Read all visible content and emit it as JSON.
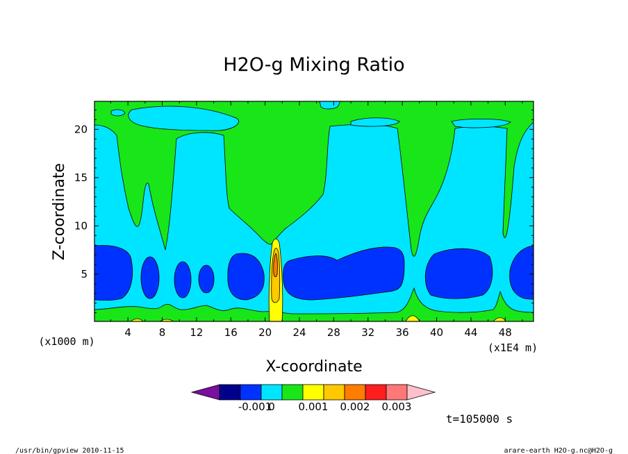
{
  "chart_data": {
    "type": "contour",
    "title": "H2O-g Mixing Ratio",
    "xlabel": "X-coordinate",
    "ylabel": "Z-coordinate",
    "x_unit_label": "(x1E4 m)",
    "y_unit_label": "(x1000 m)",
    "xlim": [
      0.1,
      51.3
    ],
    "ylim": [
      0.1,
      22.9
    ],
    "x_ticks": [
      "4",
      "8",
      "12",
      "16",
      "20",
      "24",
      "28",
      "32",
      "36",
      "40",
      "44",
      "48"
    ],
    "y_ticks": [
      "5",
      "10",
      "15",
      "20"
    ],
    "colorbar": {
      "colors": [
        "#7a0fa0",
        "#00008c",
        "#0032ff",
        "#00e5ff",
        "#19e619",
        "#ffff00",
        "#ffc800",
        "#ff7d00",
        "#ff1e1e",
        "#ff7878",
        "#ffc0cb"
      ],
      "tick_labels": [
        "-0.001",
        "0",
        "0.001",
        "0.002",
        "0.003"
      ],
      "levels": [
        -0.001,
        0,
        0.001,
        0.002,
        0.003
      ]
    },
    "regions": {
      "positive_band_top_z": 22.9,
      "cyan_column_x_centers": [
        8,
        13,
        27,
        44,
        50
      ],
      "blue_core_x_centers": [
        3,
        6,
        10,
        13,
        16,
        19,
        27,
        33,
        42,
        50
      ],
      "blue_core_z_range": [
        2.5,
        8
      ],
      "moist_plume_x": 21,
      "moist_plume_top_z": 8.5
    }
  },
  "timestamp": "t=105000 s",
  "footer_left": "/usr/bin/gpview   2010-11-15",
  "footer_right": "arare-earth_H2O-g.nc@H2O-g"
}
